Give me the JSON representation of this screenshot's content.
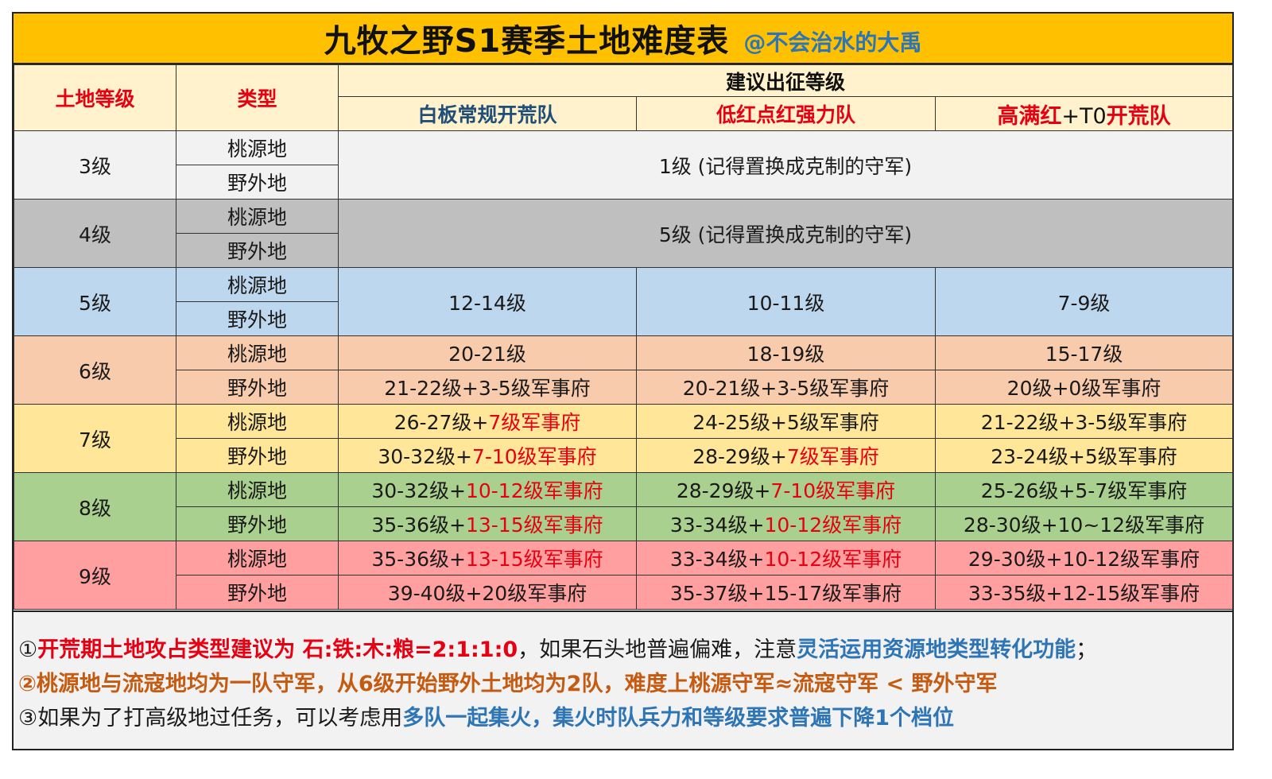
{
  "title": {
    "main": "九牧之野S1赛季土地难度表",
    "author": "@不会治水的大禹"
  },
  "headers": {
    "land_level": "土地等级",
    "type": "类型",
    "suggested": "建议出征等级",
    "team1": "白板常规开荒队",
    "team2": "低红点红强力队",
    "team3_a": "高满红",
    "team3_b": "+T0",
    "team3_c": "开荒队"
  },
  "types": {
    "taoyuan": "桃源地",
    "yewai": "野外地"
  },
  "rows": {
    "lv3": {
      "label": "3级",
      "merged": "1级 (记得置换成克制的守军)"
    },
    "lv4": {
      "label": "4级",
      "merged": "5级 (记得置换成克制的守军)"
    },
    "lv5": {
      "label": "5级",
      "c1": "12-14级",
      "c2": "10-11级",
      "c3": "7-9级"
    },
    "lv6": {
      "label": "6级",
      "t": {
        "c1": "20-21级",
        "c2": "18-19级",
        "c3": "15-17级"
      },
      "y": {
        "c1": "21-22级+3-5级军事府",
        "c2": "20-21级+3-5级军事府",
        "c3": "20级+0级军事府"
      }
    },
    "lv7": {
      "label": "7级",
      "t": {
        "c1a": "26-27级+",
        "c1b": "7级军事府",
        "c2": "24-25级+5级军事府",
        "c3": "21-22级+3-5级军事府"
      },
      "y": {
        "c1a": "30-32级+",
        "c1b": "7-10级军事府",
        "c2a": "28-29级+",
        "c2b": "7级军事府",
        "c3": "23-24级+5级军事府"
      }
    },
    "lv8": {
      "label": "8级",
      "t": {
        "c1a": "30-32级+",
        "c1b": "10-12级军事府",
        "c2a": "28-29级+",
        "c2b": "7-10级军事府",
        "c3": "25-26级+5-7级军事府"
      },
      "y": {
        "c1a": "35-36级+",
        "c1b": "13-15级军事府",
        "c2a": "33-34级+",
        "c2b": "10-12级军事府",
        "c3": "28-30级+10~12级军事府"
      }
    },
    "lv9": {
      "label": "9级",
      "t": {
        "c1a": "35-36级+",
        "c1b": "13-15级军事府",
        "c2a": "33-34级+",
        "c2b": "10-12级军事府",
        "c3": "29-30级+10-12级军事府"
      },
      "y": {
        "c1": "39-40级+20级军事府",
        "c2": "35-37级+15-17级军事府",
        "c3": "33-35级+12-15级军事府"
      }
    }
  },
  "notes": {
    "n1a": "①",
    "n1b": "开荒期土地攻占类型建议为 石:铁:木:粮=2:1:1:0",
    "n1c": "，如果石头地普遍偏难，注意",
    "n1d": "灵活运用资源地类型转化功能",
    "n1e": "；",
    "n2a": "②",
    "n2b": "桃源地与流寇地均为一队守军，从6级开始野外土地均为2队，难度上桃源守军≈流寇守军 < 野外守军",
    "n3a": "③如果为了打高级地过任务，可以考虑用",
    "n3b": "多队一起集火，集火时队兵力和等级要求普遍下降1个档位"
  },
  "colors": {
    "title_bg": "#ffc000",
    "header_bg": "#fff2cc",
    "lv3": "#f2f2f2",
    "lv4": "#bfbfbf",
    "lv5": "#bdd7ee",
    "lv6": "#f8cbad",
    "lv7": "#ffe699",
    "lv8": "#a9d08e",
    "lv9": "#ff9f9f",
    "accent_red": "#e60012",
    "accent_blue": "#2e75b6",
    "accent_orange": "#c55a11"
  }
}
